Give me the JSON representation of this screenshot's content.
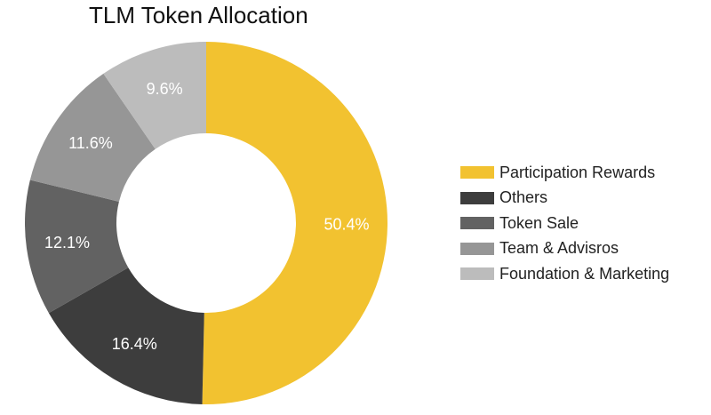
{
  "chart_data": {
    "type": "pie",
    "title": "TLM Token Allocation",
    "donut": true,
    "legend_position": "right",
    "slices": [
      {
        "label": "Participation Rewards",
        "value": 50.4,
        "display": "50.4%",
        "color": "#F2C230",
        "label_color": "#ffffff"
      },
      {
        "label": "Others",
        "value": 16.4,
        "display": "16.4%",
        "color": "#3D3D3D",
        "label_color": "#ffffff"
      },
      {
        "label": "Token Sale",
        "value": 12.1,
        "display": "12.1%",
        "color": "#626262",
        "label_color": "#ffffff"
      },
      {
        "label": "Team & Advisros",
        "value": 11.6,
        "display": "11.6%",
        "color": "#969696",
        "label_color": "#ffffff"
      },
      {
        "label": "Foundation & Marketing",
        "value": 9.6,
        "display": "9.6%",
        "color": "#BCBCBC",
        "label_color": "#ffffff"
      }
    ]
  }
}
